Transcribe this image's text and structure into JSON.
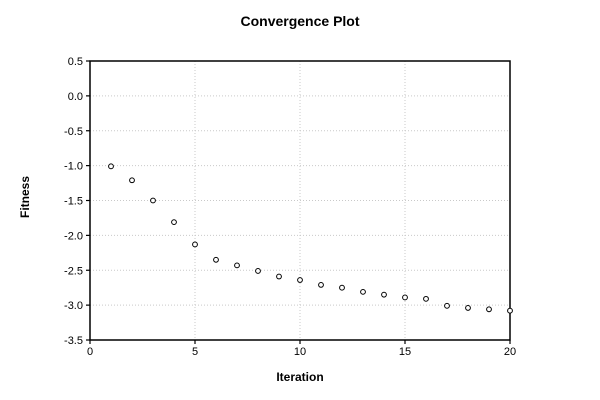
{
  "colors": {
    "background": "#ffffff",
    "axis": "#000000",
    "grid": "#c9c9c9",
    "text": "#000000",
    "marker_stroke": "#000000",
    "marker_fill": "#ffffff"
  },
  "chart_data": {
    "type": "scatter",
    "title": "Convergence Plot",
    "xlabel": "Iteration",
    "ylabel": "Fitness",
    "xlim": [
      0,
      20
    ],
    "ylim": [
      -3.5,
      0.5
    ],
    "xtick_values": [
      0,
      5,
      10,
      15,
      20
    ],
    "xtick_labels": [
      "0",
      "5",
      "10",
      "15",
      "20"
    ],
    "ytick_values": [
      0.5,
      0.0,
      -0.5,
      -1.0,
      -1.5,
      -2.0,
      -2.5,
      -3.0,
      -3.5
    ],
    "ytick_labels": [
      "0.5",
      "0.0",
      "-0.5",
      "-1.0",
      "-1.5",
      "-2.0",
      "-2.5",
      "-3.0",
      "-3.5"
    ],
    "grid": true,
    "legend": false,
    "marker": "open-circle",
    "series": [
      {
        "name": "fitness",
        "x": [
          1,
          2,
          3,
          4,
          5,
          6,
          7,
          8,
          9,
          10,
          11,
          12,
          13,
          14,
          15,
          16,
          17,
          18,
          19,
          20
        ],
        "y": [
          -1.01,
          -1.21,
          -1.5,
          -1.81,
          -2.13,
          -2.35,
          -2.43,
          -2.51,
          -2.59,
          -2.64,
          -2.71,
          -2.75,
          -2.81,
          -2.85,
          -2.89,
          -2.91,
          -3.01,
          -3.04,
          -3.06,
          -3.08
        ]
      }
    ]
  }
}
